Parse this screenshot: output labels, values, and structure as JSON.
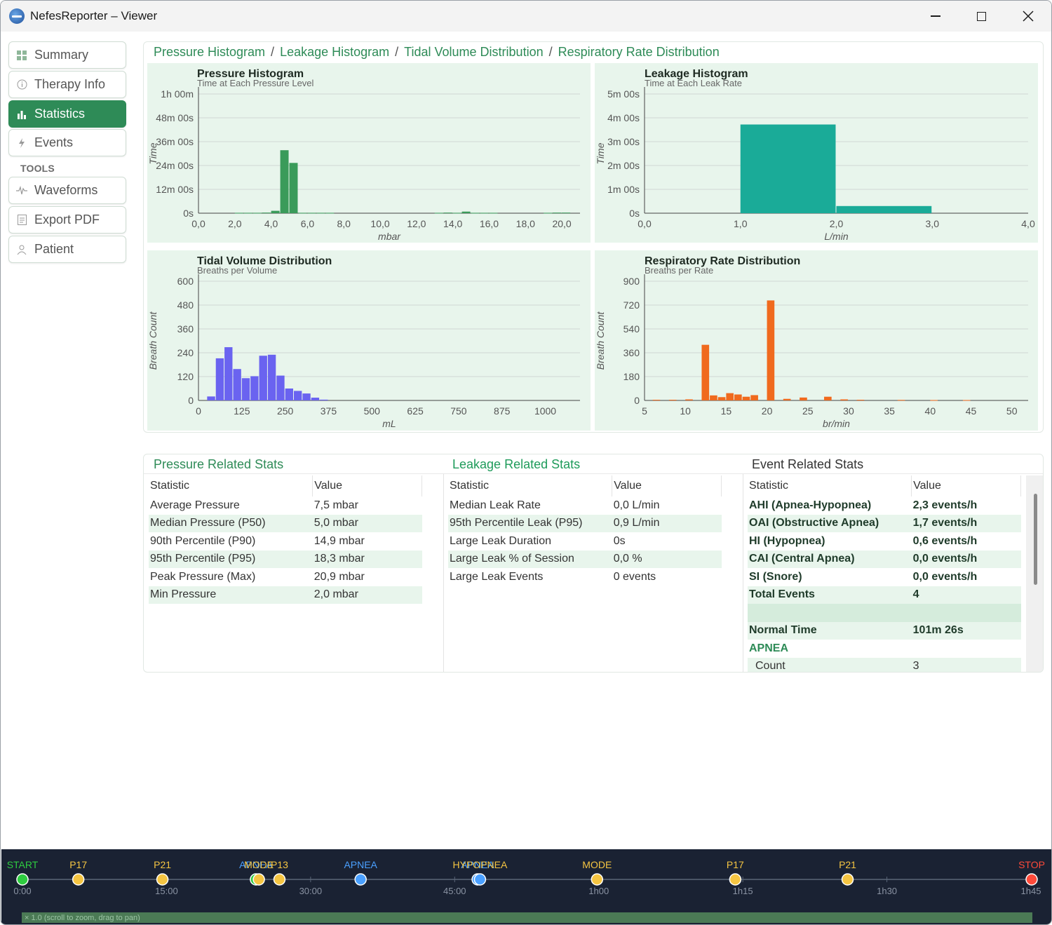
{
  "window": {
    "title": "NefesReporter – Viewer"
  },
  "sidebar": {
    "nav": [
      {
        "label": "Summary",
        "icon": "grid-icon"
      },
      {
        "label": "Therapy Info",
        "icon": "info-icon"
      },
      {
        "label": "Statistics",
        "icon": "bar-chart-icon",
        "active": true
      },
      {
        "label": "Events",
        "icon": "lightning-icon"
      }
    ],
    "tools_label": "TOOLS",
    "tools": [
      {
        "label": "Waveforms",
        "icon": "waveform-icon"
      },
      {
        "label": "Export PDF",
        "icon": "document-icon"
      },
      {
        "label": "Patient",
        "icon": "person-icon"
      }
    ]
  },
  "charts_panel": {
    "breadcrumb": [
      "Pressure Histogram",
      "Leakage Histogram",
      "Tidal Volume Distribution",
      "Respiratory Rate Distribution"
    ],
    "separator": "/"
  },
  "colors": {
    "accent": "#2e8b57",
    "plot_bg": "#e8f5ec",
    "pressure": "#3a9b5a",
    "leak": "#1aab98",
    "tidal": "#6a63f0",
    "rate": "#f06a1e"
  },
  "chart_data": [
    {
      "type": "bar",
      "title": "Pressure Histogram",
      "subtitle": "Time at Each Pressure Level",
      "xlabel": "mbar",
      "ylabel": "Time",
      "xlim": [
        0,
        21
      ],
      "ylim": [
        0,
        60
      ],
      "x_ticks": [
        "0,0",
        "2,0",
        "4,0",
        "6,0",
        "8,0",
        "10,0",
        "12,0",
        "14,0",
        "16,0",
        "18,0",
        "20,0"
      ],
      "y_ticks": [
        "0s",
        "12m 00s",
        "24m 00s",
        "36m 00s",
        "48m 00s",
        "1h 00m"
      ],
      "bin_width": 0.5,
      "bins": [
        {
          "x": 2.0,
          "value": 0.2
        },
        {
          "x": 2.5,
          "value": 0.2
        },
        {
          "x": 3.0,
          "value": 0.2
        },
        {
          "x": 3.5,
          "value": 0.3
        },
        {
          "x": 4.0,
          "value": 1.2
        },
        {
          "x": 4.5,
          "value": 31.7
        },
        {
          "x": 5.0,
          "value": 25.3
        },
        {
          "x": 5.5,
          "value": 0.2
        },
        {
          "x": 6.0,
          "value": 0.2
        },
        {
          "x": 6.5,
          "value": 0.2
        },
        {
          "x": 7.0,
          "value": 0.2
        },
        {
          "x": 13.0,
          "value": 0.2
        },
        {
          "x": 13.5,
          "value": 0.3
        },
        {
          "x": 14.0,
          "value": 0.2
        },
        {
          "x": 14.5,
          "value": 0.8
        },
        {
          "x": 15.0,
          "value": 0.2
        },
        {
          "x": 15.5,
          "value": 0.2
        },
        {
          "x": 16.0,
          "value": 0.2
        },
        {
          "x": 19.0,
          "value": 0.2
        },
        {
          "x": 19.5,
          "value": 0.3
        },
        {
          "x": 20.0,
          "value": 0.3
        }
      ]
    },
    {
      "type": "bar",
      "title": "Leakage Histogram",
      "subtitle": "Time at Each Leak Rate",
      "xlabel": "L/min",
      "ylabel": "Time",
      "xlim": [
        0,
        4
      ],
      "ylim": [
        0,
        5
      ],
      "x_ticks": [
        "0,0",
        "1,0",
        "2,0",
        "3,0",
        "4,0"
      ],
      "y_ticks": [
        "0s",
        "1m 00s",
        "2m 00s",
        "3m 00s",
        "4m 00s",
        "5m 00s"
      ],
      "bin_width": 1,
      "bins": [
        {
          "x": 1.0,
          "value": 3.72
        },
        {
          "x": 2.0,
          "value": 0.3
        }
      ]
    },
    {
      "type": "bar",
      "title": "Tidal Volume Distribution",
      "subtitle": "Breaths per Volume",
      "xlabel": "mL",
      "ylabel": "Breath Count",
      "xlim": [
        0,
        1100
      ],
      "ylim": [
        0,
        600
      ],
      "x_ticks": [
        "0",
        "125",
        "250",
        "375",
        "500",
        "625",
        "750",
        "875",
        "1000"
      ],
      "y_ticks": [
        "0",
        "120",
        "240",
        "360",
        "480",
        "600"
      ],
      "bin_width": 25,
      "bins": [
        {
          "x": 25,
          "value": 20
        },
        {
          "x": 50,
          "value": 212
        },
        {
          "x": 75,
          "value": 268
        },
        {
          "x": 100,
          "value": 158
        },
        {
          "x": 125,
          "value": 112
        },
        {
          "x": 150,
          "value": 122
        },
        {
          "x": 175,
          "value": 225
        },
        {
          "x": 200,
          "value": 230
        },
        {
          "x": 225,
          "value": 125
        },
        {
          "x": 250,
          "value": 60
        },
        {
          "x": 275,
          "value": 48
        },
        {
          "x": 300,
          "value": 35
        },
        {
          "x": 325,
          "value": 14
        },
        {
          "x": 350,
          "value": 4
        }
      ]
    },
    {
      "type": "bar",
      "title": "Respiratory Rate Distribution",
      "subtitle": "Breaths per Rate",
      "xlabel": "br/min",
      "ylabel": "Breath Count",
      "xlim": [
        5,
        52
      ],
      "ylim": [
        0,
        900
      ],
      "x_ticks": [
        "5",
        "10",
        "15",
        "20",
        "25",
        "30",
        "35",
        "40",
        "45",
        "50"
      ],
      "y_ticks": [
        "0",
        "180",
        "360",
        "540",
        "720",
        "900"
      ],
      "bin_width": 1,
      "bins": [
        {
          "x": 6,
          "value": 5
        },
        {
          "x": 8,
          "value": 5
        },
        {
          "x": 10,
          "value": 8
        },
        {
          "x": 12,
          "value": 420
        },
        {
          "x": 13,
          "value": 38
        },
        {
          "x": 14,
          "value": 25
        },
        {
          "x": 15,
          "value": 55
        },
        {
          "x": 16,
          "value": 45
        },
        {
          "x": 17,
          "value": 28
        },
        {
          "x": 18,
          "value": 40
        },
        {
          "x": 20,
          "value": 755
        },
        {
          "x": 22,
          "value": 12
        },
        {
          "x": 24,
          "value": 22
        },
        {
          "x": 27,
          "value": 28
        },
        {
          "x": 29,
          "value": 8
        },
        {
          "x": 31,
          "value": 5
        },
        {
          "x": 36,
          "value": 4
        },
        {
          "x": 40,
          "value": 3
        },
        {
          "x": 44,
          "value": 3
        }
      ]
    }
  ],
  "pressure_stats": {
    "title": "Pressure Related Stats",
    "headers": [
      "Statistic",
      "Value"
    ],
    "rows": [
      [
        "Average Pressure",
        "7,5 mbar"
      ],
      [
        "Median Pressure (P50)",
        "5,0 mbar"
      ],
      [
        "90th Percentile (P90)",
        "14,9 mbar"
      ],
      [
        "95th Percentile (P95)",
        "18,3 mbar"
      ],
      [
        "Peak Pressure (Max)",
        "20,9 mbar"
      ],
      [
        "Min Pressure",
        "2,0 mbar"
      ]
    ]
  },
  "leakage_stats": {
    "title": "Leakage Related Stats",
    "headers": [
      "Statistic",
      "Value"
    ],
    "rows": [
      [
        "Median Leak Rate",
        "0,0 L/min"
      ],
      [
        "95th Percentile Leak (P95)",
        "0,9 L/min"
      ],
      [
        "Large Leak Duration",
        "0s"
      ],
      [
        "Large Leak % of Session",
        "0,0 %"
      ],
      [
        "Large Leak Events",
        "0 events"
      ]
    ]
  },
  "event_stats": {
    "title": "Event Related Stats",
    "headers": [
      "Statistic",
      "Value"
    ],
    "rows": [
      [
        "AHI  (Apnea-Hypopnea)",
        "2,3   events/h"
      ],
      [
        "OAI  (Obstructive Apnea)",
        "1,7   events/h"
      ],
      [
        "HI   (Hypopnea)",
        "0,6   events/h"
      ],
      [
        "CAI  (Central Apnea)",
        "0,0   events/h"
      ],
      [
        "SI   (Snore)",
        "0,0   events/h"
      ],
      [
        "Total Events",
        "4"
      ],
      [
        "",
        ""
      ],
      [
        "Normal Time",
        "101m 26s"
      ]
    ],
    "section": "APNEA",
    "sub_rows": [
      [
        "Count",
        "3"
      ]
    ]
  },
  "timeline": {
    "events": [
      {
        "label": "START",
        "time_min": 0,
        "color": "#2ecc40",
        "label_color": "#2ecc40"
      },
      {
        "label": "P17",
        "time_min": 9.5,
        "color": "#f5c542",
        "label_color": "#f5c542"
      },
      {
        "label": "P21",
        "time_min": 23.8,
        "color": "#f5c542",
        "label_color": "#f5c542"
      },
      {
        "label": "APNEA",
        "time_min": 39.7,
        "color": "#2ecc40",
        "label_color": "#4aa0ff"
      },
      {
        "label": "MODE",
        "time_min": 40.2,
        "color": "#f5c542",
        "label_color": "#f5c542"
      },
      {
        "label": "P13",
        "time_min": 43.7,
        "color": "#f5c542",
        "label_color": "#f5c542"
      },
      {
        "label": "APNEA",
        "time_min": 57.5,
        "color": "#4aa0ff",
        "label_color": "#4aa0ff"
      },
      {
        "label": "APNEA",
        "time_min": 77.4,
        "color": "#4aa0ff",
        "label_color": "#4aa0ff"
      },
      {
        "label": "HYPOPNEA",
        "time_min": 77.8,
        "color": "#4aa0ff",
        "label_color": "#f5c542"
      },
      {
        "label": "MODE",
        "time_min": 97.7,
        "color": "#f5c542",
        "label_color": "#f5c542"
      },
      {
        "label": "P17",
        "time_min": 121.2,
        "color": "#f5c542",
        "label_color": "#f5c542"
      },
      {
        "label": "P21",
        "time_min": 140.3,
        "color": "#f5c542",
        "label_color": "#f5c542"
      },
      {
        "label": "STOP",
        "time_min": 171.6,
        "color": "#ff4a3a",
        "label_color": "#ff4a3a"
      }
    ],
    "time_labels": [
      "0:00",
      "15:00",
      "30:00",
      "45:00",
      "1h00",
      "1h15",
      "1h30",
      "1h45"
    ],
    "zoom_text": "× 1.0  (scroll to zoom, drag to pan)"
  }
}
